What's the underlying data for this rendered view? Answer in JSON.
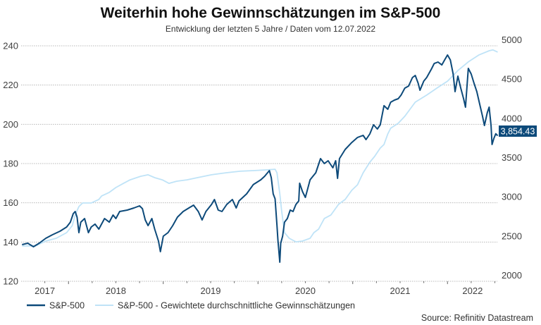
{
  "chart_data": {
    "type": "line",
    "title": "Weiterhin hohe Gewinnschätzungen im S&P-500",
    "subtitle": "Entwicklung der letzten 5 Jahre / Daten vom 12.07.2022",
    "source": "Source: Refinitiv Datastream",
    "x_unit": "decimal year",
    "xlim": [
      2017.5,
      2022.53
    ],
    "x_tick_labels": [
      "2017",
      "2018",
      "2019",
      "2020",
      "2021",
      "2022"
    ],
    "y_left": {
      "ylim": [
        120,
        240
      ],
      "ticks": [
        "120",
        "140",
        "160",
        "180",
        "200",
        "220",
        "240"
      ]
    },
    "y_right": {
      "ylim": [
        2000,
        5000
      ],
      "ticks": [
        "2000",
        "2500",
        "3000",
        "3500",
        "4000",
        "4500",
        "5000"
      ]
    },
    "grid": true,
    "legend_position": "bottom-left",
    "end_label": "3,854.43",
    "colors": {
      "sp500": "#0d4a7a",
      "estimates": "#bfe3f7",
      "end_label_bg": "#0d4a7a"
    },
    "series": [
      {
        "name": "S&P-500",
        "axis": "right",
        "points": [
          [
            2017.51,
            2467
          ],
          [
            2017.57,
            2485
          ],
          [
            2017.63,
            2440
          ],
          [
            2017.69,
            2485
          ],
          [
            2017.76,
            2548
          ],
          [
            2017.83,
            2593
          ],
          [
            2017.91,
            2638
          ],
          [
            2017.98,
            2692
          ],
          [
            2018.02,
            2754
          ],
          [
            2018.05,
            2862
          ],
          [
            2018.07,
            2889
          ],
          [
            2018.09,
            2817
          ],
          [
            2018.11,
            2620
          ],
          [
            2018.13,
            2754
          ],
          [
            2018.17,
            2799
          ],
          [
            2018.21,
            2620
          ],
          [
            2018.24,
            2692
          ],
          [
            2018.28,
            2728
          ],
          [
            2018.32,
            2665
          ],
          [
            2018.38,
            2799
          ],
          [
            2018.43,
            2754
          ],
          [
            2018.47,
            2844
          ],
          [
            2018.5,
            2799
          ],
          [
            2018.54,
            2889
          ],
          [
            2018.62,
            2907
          ],
          [
            2018.69,
            2934
          ],
          [
            2018.75,
            2961
          ],
          [
            2018.78,
            2925
          ],
          [
            2018.81,
            2781
          ],
          [
            2018.84,
            2710
          ],
          [
            2018.88,
            2799
          ],
          [
            2018.91,
            2665
          ],
          [
            2018.95,
            2512
          ],
          [
            2018.97,
            2377
          ],
          [
            2019.0,
            2575
          ],
          [
            2019.05,
            2620
          ],
          [
            2019.1,
            2710
          ],
          [
            2019.15,
            2817
          ],
          [
            2019.21,
            2889
          ],
          [
            2019.27,
            2934
          ],
          [
            2019.32,
            2970
          ],
          [
            2019.37,
            2889
          ],
          [
            2019.41,
            2781
          ],
          [
            2019.45,
            2889
          ],
          [
            2019.51,
            2979
          ],
          [
            2019.54,
            3042
          ],
          [
            2019.58,
            2907
          ],
          [
            2019.62,
            2889
          ],
          [
            2019.67,
            2979
          ],
          [
            2019.73,
            3042
          ],
          [
            2019.77,
            2934
          ],
          [
            2019.8,
            3024
          ],
          [
            2019.88,
            3114
          ],
          [
            2019.95,
            3231
          ],
          [
            2020.03,
            3293
          ],
          [
            2020.07,
            3338
          ],
          [
            2020.12,
            3410
          ],
          [
            2020.14,
            3320
          ],
          [
            2020.16,
            3114
          ],
          [
            2020.18,
            3051
          ],
          [
            2020.2,
            2710
          ],
          [
            2020.21,
            2530
          ],
          [
            2020.23,
            2243
          ],
          [
            2020.24,
            2485
          ],
          [
            2020.26,
            2575
          ],
          [
            2020.28,
            2754
          ],
          [
            2020.31,
            2799
          ],
          [
            2020.34,
            2907
          ],
          [
            2020.37,
            2889
          ],
          [
            2020.4,
            2979
          ],
          [
            2020.43,
            3024
          ],
          [
            2020.44,
            3249
          ],
          [
            2020.47,
            3141
          ],
          [
            2020.5,
            3069
          ],
          [
            2020.52,
            3159
          ],
          [
            2020.55,
            3293
          ],
          [
            2020.61,
            3383
          ],
          [
            2020.66,
            3563
          ],
          [
            2020.7,
            3500
          ],
          [
            2020.74,
            3536
          ],
          [
            2020.79,
            3446
          ],
          [
            2020.82,
            3536
          ],
          [
            2020.84,
            3311
          ],
          [
            2020.86,
            3563
          ],
          [
            2020.92,
            3680
          ],
          [
            2020.99,
            3769
          ],
          [
            2021.05,
            3832
          ],
          [
            2021.11,
            3859
          ],
          [
            2021.14,
            3805
          ],
          [
            2021.18,
            3877
          ],
          [
            2021.22,
            3994
          ],
          [
            2021.26,
            3940
          ],
          [
            2021.29,
            3994
          ],
          [
            2021.33,
            4237
          ],
          [
            2021.37,
            4192
          ],
          [
            2021.4,
            4281
          ],
          [
            2021.44,
            4308
          ],
          [
            2021.48,
            4326
          ],
          [
            2021.51,
            4371
          ],
          [
            2021.55,
            4461
          ],
          [
            2021.59,
            4488
          ],
          [
            2021.63,
            4596
          ],
          [
            2021.66,
            4623
          ],
          [
            2021.69,
            4524
          ],
          [
            2021.71,
            4434
          ],
          [
            2021.75,
            4551
          ],
          [
            2021.78,
            4596
          ],
          [
            2021.83,
            4704
          ],
          [
            2021.86,
            4775
          ],
          [
            2021.9,
            4793
          ],
          [
            2021.94,
            4757
          ],
          [
            2021.97,
            4820
          ],
          [
            2022.0,
            4883
          ],
          [
            2022.03,
            4820
          ],
          [
            2022.06,
            4641
          ],
          [
            2022.08,
            4416
          ],
          [
            2022.11,
            4614
          ],
          [
            2022.14,
            4461
          ],
          [
            2022.17,
            4326
          ],
          [
            2022.19,
            4219
          ],
          [
            2022.22,
            4713
          ],
          [
            2022.25,
            4641
          ],
          [
            2022.28,
            4524
          ],
          [
            2022.31,
            4416
          ],
          [
            2022.34,
            4255
          ],
          [
            2022.37,
            4102
          ],
          [
            2022.39,
            3985
          ],
          [
            2022.42,
            4147
          ],
          [
            2022.44,
            4219
          ],
          [
            2022.46,
            3985
          ],
          [
            2022.47,
            3743
          ],
          [
            2022.49,
            3823
          ],
          [
            2022.51,
            3880
          ],
          [
            2022.53,
            3854.43
          ]
        ]
      },
      {
        "name": "S&P-500 - Gewichtete durchschnittliche Gewinnschätzungen",
        "axis": "left",
        "points": [
          [
            2017.51,
            138.0
          ],
          [
            2017.65,
            138.0
          ],
          [
            2017.76,
            140.5
          ],
          [
            2017.87,
            141.9
          ],
          [
            2017.98,
            144.8
          ],
          [
            2018.04,
            148.4
          ],
          [
            2018.07,
            153.8
          ],
          [
            2018.11,
            158.1
          ],
          [
            2018.15,
            159.9
          ],
          [
            2018.24,
            159.9
          ],
          [
            2018.32,
            161.7
          ],
          [
            2018.35,
            163.5
          ],
          [
            2018.43,
            165.3
          ],
          [
            2018.5,
            167.8
          ],
          [
            2018.58,
            169.9
          ],
          [
            2018.65,
            171.7
          ],
          [
            2018.76,
            173.5
          ],
          [
            2018.84,
            174.3
          ],
          [
            2018.91,
            172.8
          ],
          [
            2018.99,
            171.7
          ],
          [
            2019.06,
            169.9
          ],
          [
            2019.14,
            171.0
          ],
          [
            2019.25,
            171.7
          ],
          [
            2019.36,
            172.8
          ],
          [
            2019.51,
            174.3
          ],
          [
            2019.66,
            175.3
          ],
          [
            2019.81,
            176.1
          ],
          [
            2019.95,
            176.4
          ],
          [
            2020.1,
            176.8
          ],
          [
            2020.18,
            177.1
          ],
          [
            2020.2,
            175.3
          ],
          [
            2020.23,
            164.6
          ],
          [
            2020.25,
            155.6
          ],
          [
            2020.28,
            144.8
          ],
          [
            2020.33,
            141.9
          ],
          [
            2020.4,
            140.1
          ],
          [
            2020.47,
            140.5
          ],
          [
            2020.55,
            141.9
          ],
          [
            2020.59,
            144.8
          ],
          [
            2020.64,
            146.6
          ],
          [
            2020.7,
            152.0
          ],
          [
            2020.77,
            153.8
          ],
          [
            2020.85,
            159.2
          ],
          [
            2020.92,
            161.7
          ],
          [
            2020.99,
            166.4
          ],
          [
            2021.05,
            169.2
          ],
          [
            2021.11,
            175.3
          ],
          [
            2021.18,
            180.7
          ],
          [
            2021.23,
            183.6
          ],
          [
            2021.29,
            187.9
          ],
          [
            2021.33,
            189.7
          ],
          [
            2021.37,
            195.1
          ],
          [
            2021.4,
            198.0
          ],
          [
            2021.48,
            200.5
          ],
          [
            2021.55,
            204.1
          ],
          [
            2021.66,
            211.3
          ],
          [
            2021.78,
            214.9
          ],
          [
            2021.89,
            218.5
          ],
          [
            2022.0,
            222.0
          ],
          [
            2022.11,
            227.4
          ],
          [
            2022.22,
            231.8
          ],
          [
            2022.33,
            235.3
          ],
          [
            2022.44,
            237.5
          ],
          [
            2022.48,
            237.9
          ],
          [
            2022.53,
            236.8
          ]
        ]
      }
    ]
  }
}
